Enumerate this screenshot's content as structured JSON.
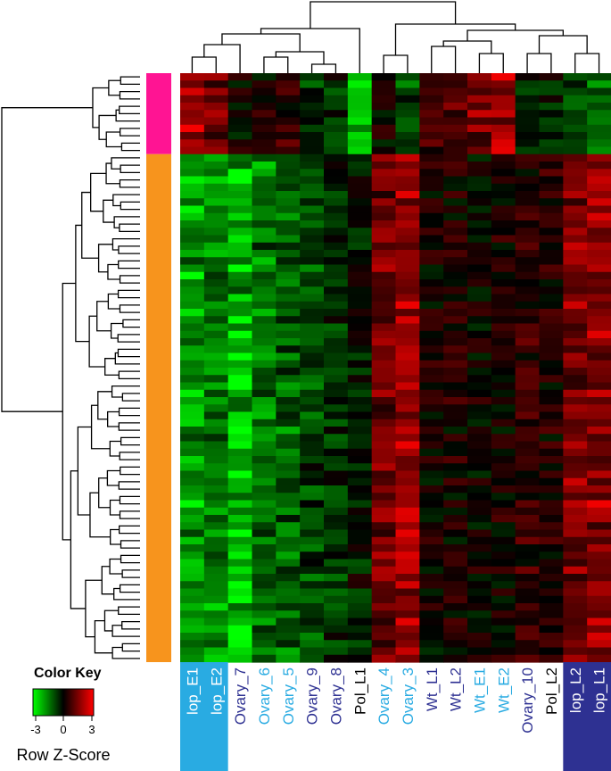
{
  "chart_data": {
    "type": "heatmap",
    "columns": [
      "lop_E1",
      "lop_E2",
      "Ovary_7",
      "Ovary_6",
      "Ovary_5",
      "Ovary_9",
      "Ovary_8",
      "Pol_L1",
      "Ovary_4",
      "Ovary_3",
      "Wt_L1",
      "Wt_L2",
      "Wt_E1",
      "Wt_E2",
      "Ovary_10",
      "Pol_L2",
      "lop_L2",
      "lop_L1"
    ],
    "column_label_colors": [
      "#ffffff",
      "#ffffff",
      "#2e3192",
      "#29abe2",
      "#29abe2",
      "#2e3192",
      "#2e3192",
      "#000000",
      "#29abe2",
      "#29abe2",
      "#2e3192",
      "#2e3192",
      "#29abe2",
      "#29abe2",
      "#2e3192",
      "#000000",
      "#ffffff",
      "#ffffff"
    ],
    "column_highlights": [
      {
        "columns": [
          "lop_E1",
          "lop_E2"
        ],
        "color": "#29abe2"
      },
      {
        "columns": [
          "lop_L2",
          "lop_L1"
        ],
        "color": "#2e3192"
      }
    ],
    "row_clusters": [
      {
        "color": "#ff1493",
        "rows": 11
      },
      {
        "color": "#f7941d",
        "rows": 69
      }
    ],
    "column_profiles": {
      "cluster1": [
        2.0,
        1.6,
        0.0,
        0.2,
        0.6,
        -0.6,
        -0.5,
        -2.6,
        0.3,
        -1.0,
        0.9,
        1.2,
        1.6,
        2.1,
        -0.6,
        -0.3,
        -1.0,
        -1.3
      ],
      "cluster2": [
        -2.2,
        -1.8,
        -2.6,
        -1.6,
        -1.3,
        -0.9,
        -0.6,
        -0.3,
        1.5,
        2.1,
        0.2,
        0.3,
        0.1,
        0.3,
        0.6,
        0.4,
        1.6,
        1.9
      ]
    },
    "color_key": {
      "title": "Color Key",
      "xlabel": "Row Z-Score",
      "ticks": [
        "-3",
        "0",
        "3"
      ],
      "range": [
        -3,
        3
      ],
      "colors": [
        "#00ff00",
        "#000000",
        "#ff0000"
      ]
    }
  }
}
